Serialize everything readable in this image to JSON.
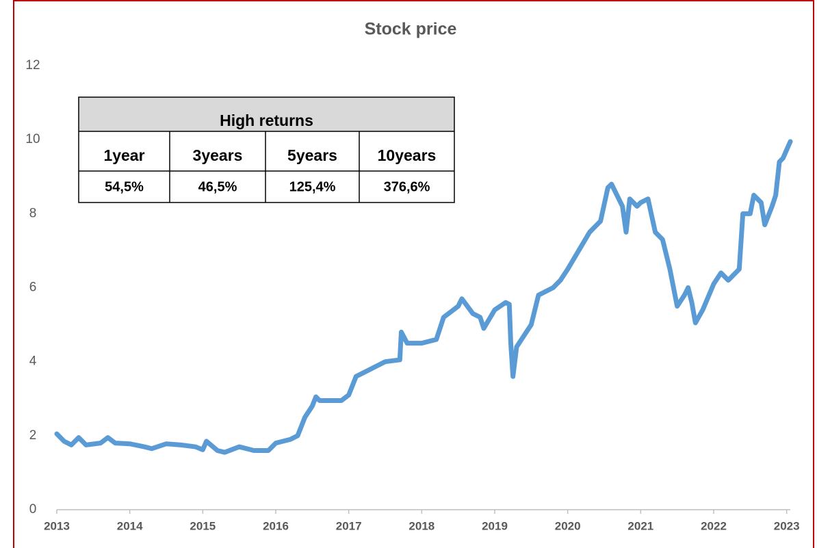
{
  "chart_data": {
    "type": "line",
    "title": "Stock price",
    "x": [
      2013.0,
      2013.1,
      2013.2,
      2013.3,
      2013.4,
      2013.6,
      2013.7,
      2013.8,
      2014.0,
      2014.2,
      2014.3,
      2014.5,
      2014.7,
      2014.9,
      2015.0,
      2015.05,
      2015.2,
      2015.3,
      2015.5,
      2015.7,
      2015.9,
      2016.0,
      2016.2,
      2016.3,
      2016.4,
      2016.5,
      2016.55,
      2016.6,
      2016.9,
      2017.0,
      2017.1,
      2017.3,
      2017.5,
      2017.7,
      2017.72,
      2017.8,
      2018.0,
      2018.2,
      2018.3,
      2018.5,
      2018.55,
      2018.7,
      2018.8,
      2018.85,
      2019.0,
      2019.15,
      2019.2,
      2019.22,
      2019.25,
      2019.3,
      2019.5,
      2019.6,
      2019.8,
      2019.9,
      2020.0,
      2020.15,
      2020.3,
      2020.45,
      2020.55,
      2020.6,
      2020.75,
      2020.8,
      2020.85,
      2020.95,
      2021.0,
      2021.1,
      2021.2,
      2021.3,
      2021.4,
      2021.5,
      2021.6,
      2021.65,
      2021.7,
      2021.75,
      2021.85,
      2022.0,
      2022.1,
      2022.2,
      2022.35,
      2022.4,
      2022.5,
      2022.55,
      2022.65,
      2022.7,
      2022.8,
      2022.85,
      2022.9,
      2022.95,
      2023.05
    ],
    "series": [
      {
        "name": "Stock price",
        "color": "#5b9bd5",
        "values": [
          2.05,
          1.85,
          1.75,
          1.95,
          1.75,
          1.8,
          1.95,
          1.8,
          1.78,
          1.7,
          1.65,
          1.78,
          1.75,
          1.7,
          1.62,
          1.85,
          1.6,
          1.55,
          1.7,
          1.6,
          1.6,
          1.8,
          1.9,
          2.0,
          2.5,
          2.8,
          3.05,
          2.95,
          2.95,
          3.1,
          3.6,
          3.8,
          4.0,
          4.05,
          4.8,
          4.5,
          4.5,
          4.6,
          5.2,
          5.5,
          5.7,
          5.3,
          5.2,
          4.9,
          5.4,
          5.6,
          5.55,
          4.5,
          3.6,
          4.4,
          5.0,
          5.8,
          6.0,
          6.2,
          6.5,
          7.0,
          7.5,
          7.8,
          8.7,
          8.8,
          8.2,
          7.5,
          8.4,
          8.2,
          8.3,
          8.4,
          7.5,
          7.3,
          6.5,
          5.5,
          5.8,
          6.0,
          5.6,
          5.05,
          5.4,
          6.1,
          6.4,
          6.2,
          6.5,
          8.0,
          8.0,
          8.5,
          8.3,
          7.7,
          8.2,
          8.5,
          9.4,
          9.5,
          9.95
        ]
      }
    ],
    "xlim": [
      2013,
      2023.05
    ],
    "xticks": [
      2013,
      2014,
      2015,
      2016,
      2017,
      2018,
      2019,
      2020,
      2021,
      2022,
      2023
    ],
    "ylim": [
      0,
      12
    ],
    "yticks": [
      0,
      2,
      4,
      6,
      8,
      10,
      12
    ],
    "grid": false,
    "table": {
      "title": "High returns",
      "headers": [
        "1year",
        "3years",
        "5years",
        "10years"
      ],
      "cells": [
        "54,5%",
        "46,5%",
        "125,4%",
        "376,6%"
      ]
    }
  }
}
